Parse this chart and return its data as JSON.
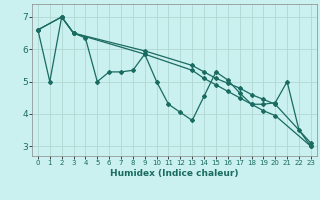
{
  "xlabel": "Humidex (Indice chaleur)",
  "bg_color": "#caf0f0",
  "grid_color": "#b0d8d0",
  "line_color": "#1a6b60",
  "xlim": [
    -0.5,
    23.5
  ],
  "ylim": [
    2.7,
    7.4
  ],
  "xticks": [
    0,
    1,
    2,
    3,
    4,
    5,
    6,
    7,
    8,
    9,
    10,
    11,
    12,
    13,
    14,
    15,
    16,
    17,
    18,
    19,
    20,
    21,
    22,
    23
  ],
  "yticks": [
    3,
    4,
    5,
    6,
    7
  ],
  "series1_x": [
    0,
    1,
    2,
    3,
    4,
    5,
    6,
    7,
    8,
    9,
    10,
    11,
    12,
    13,
    14,
    15,
    16,
    17,
    18,
    19,
    20,
    21,
    22,
    23
  ],
  "series1_y": [
    6.6,
    5.0,
    7.0,
    6.5,
    6.35,
    5.0,
    5.3,
    5.3,
    5.35,
    5.85,
    5.0,
    4.3,
    4.05,
    3.8,
    4.55,
    5.3,
    5.05,
    4.65,
    4.3,
    4.3,
    4.35,
    5.0,
    3.5,
    3.0
  ],
  "series2_x": [
    0,
    2,
    3,
    9,
    13,
    14,
    15,
    16,
    17,
    18,
    19,
    20,
    23
  ],
  "series2_y": [
    6.6,
    7.0,
    6.5,
    5.85,
    5.35,
    5.1,
    4.9,
    4.7,
    4.5,
    4.3,
    4.1,
    3.95,
    3.0
  ],
  "series3_x": [
    0,
    2,
    3,
    9,
    13,
    14,
    15,
    16,
    17,
    18,
    19,
    20,
    23
  ],
  "series3_y": [
    6.6,
    7.0,
    6.5,
    5.95,
    5.5,
    5.3,
    5.1,
    4.95,
    4.8,
    4.6,
    4.45,
    4.3,
    3.1
  ]
}
